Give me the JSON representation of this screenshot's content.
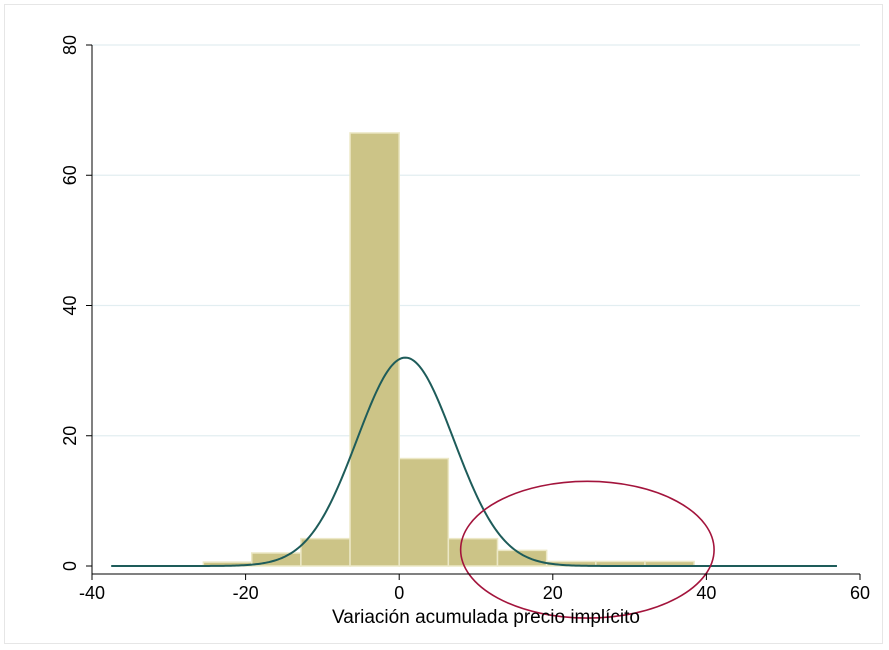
{
  "chart_data": {
    "type": "histogram",
    "xlabel": "Variación acumulada precio implícito",
    "ylabel": "",
    "xlim": [
      -40,
      60
    ],
    "ylim": [
      0,
      80
    ],
    "xticks": [
      -40,
      -20,
      0,
      20,
      40,
      60
    ],
    "yticks": [
      0,
      20,
      40,
      60,
      80
    ],
    "grid": "horizontal",
    "bars": [
      {
        "x0": -25.5,
        "x1": -19.2,
        "value": 0.6
      },
      {
        "x0": -19.2,
        "x1": -12.8,
        "value": 2.0
      },
      {
        "x0": -12.8,
        "x1": -6.4,
        "value": 4.2
      },
      {
        "x0": -6.4,
        "x1": 0.0,
        "value": 66.5
      },
      {
        "x0": 0.0,
        "x1": 6.4,
        "value": 16.5
      },
      {
        "x0": 6.4,
        "x1": 12.8,
        "value": 4.2
      },
      {
        "x0": 12.8,
        "x1": 19.2,
        "value": 2.4
      },
      {
        "x0": 19.2,
        "x1": 25.6,
        "value": 0.7
      },
      {
        "x0": 25.6,
        "x1": 32.0,
        "value": 0.7
      },
      {
        "x0": 32.0,
        "x1": 38.4,
        "value": 0.7
      }
    ],
    "normal_curve": {
      "mean": 0.8,
      "sd": 6.3,
      "peak": 32,
      "x_range": [
        -37.5,
        57
      ]
    },
    "annotation": {
      "shape": "ellipse",
      "cx": 24.5,
      "cy": 2.5,
      "rx": 16.5,
      "ry": 10.5
    }
  },
  "colors": {
    "bar_fill": "#ccc487",
    "bar_stroke": "#ece8c6",
    "curve": "#1e5c5a",
    "grid": "#e2eef1",
    "ellipse": "#a3143c",
    "axis": "#000000"
  }
}
